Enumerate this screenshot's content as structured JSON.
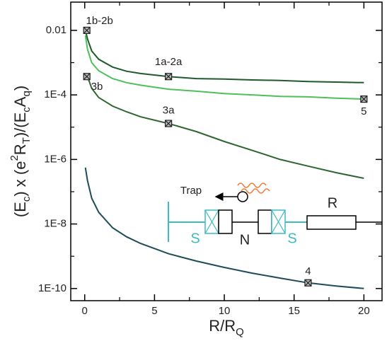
{
  "chart_data": {
    "type": "line",
    "log_y": true,
    "x": [
      0.05,
      0.2,
      0.5,
      1,
      2,
      3,
      4,
      6,
      8,
      10,
      12,
      14,
      16,
      18,
      20
    ],
    "series": [
      {
        "color": "#1f5a2a",
        "values": [
          0.01,
          0.0054,
          0.0023,
          0.00127,
          0.00073,
          0.00054,
          0.00046,
          0.00037,
          0.00032,
          0.00031,
          0.00029,
          0.00028,
          0.00026,
          0.00025,
          0.00024
        ]
      },
      {
        "color": "#4fbf5a",
        "values": [
          0.007,
          0.0026,
          0.001,
          0.00056,
          0.00032,
          0.00024,
          0.0002,
          0.00015,
          0.00013,
          0.00011,
          0.0001,
          9e-05,
          8.7e-05,
          7.9e-05,
          7.4e-05
        ]
      },
      {
        "color": "#2c6632",
        "values": [
          null,
          0.00037,
          0.00016,
          8.3e-05,
          4.5e-05,
          3e-05,
          2.1e-05,
          1.3e-05,
          7.3e-06,
          3.6e-06,
          1.9e-06,
          1e-06,
          6.2e-07,
          3.9e-07,
          2.6e-07
        ]
      },
      {
        "color": "#1d4c58",
        "values": [
          5.6e-07,
          2.2e-07,
          6.3e-08,
          2.3e-08,
          7.6e-09,
          4e-09,
          2.5e-09,
          1.2e-09,
          7.1e-10,
          4.5e-10,
          3e-10,
          2.1e-10,
          1.5e-10,
          1.2e-10,
          1e-10
        ]
      }
    ],
    "annotations": [
      {
        "text": "1b-2b",
        "x": 0.15,
        "y": 0.01
      },
      {
        "text": "1a-2a",
        "x": 6,
        "y": 0.00037
      },
      {
        "text": "3b",
        "x": 0.15,
        "y": 0.00037
      },
      {
        "text": "3a",
        "x": 6,
        "y": 1.3e-05
      },
      {
        "text": "5",
        "x": 20,
        "y": 7.4e-05
      },
      {
        "text": "4",
        "x": 16,
        "y": 1.5e-10
      }
    ],
    "xlim": [
      -1,
      21.3
    ],
    "ylim": [
      4.2e-11,
      0.075
    ],
    "xticks": [
      0,
      5,
      10,
      15,
      20
    ],
    "xminor": [
      2.5,
      7.5,
      12.5,
      17.5
    ],
    "yticks": [
      0.01,
      {
        "value": 0.0001,
        "label": "1E-4"
      },
      {
        "value": 1e-06,
        "label": "1E-6"
      },
      {
        "value": 1e-08,
        "label": "1E-8"
      },
      {
        "value": 1e-10,
        "label": "1E-10"
      }
    ],
    "yminor": [
      0.001,
      1e-05,
      1e-07,
      1e-09
    ],
    "xlabel": [
      {
        "text": "R/R"
      },
      {
        "text": "Q",
        "sub": true
      }
    ],
    "ylabel": [
      {
        "text": "(E"
      },
      {
        "text": "c",
        "sub": true
      },
      {
        "text": ") x (e"
      },
      {
        "text": "2",
        "sup": true
      },
      {
        "text": "R"
      },
      {
        "text": "T",
        "sub": true
      },
      {
        "text": ")/(E"
      },
      {
        "text": "c",
        "sub": true
      },
      {
        "text": "A"
      },
      {
        "text": "q",
        "sub": true
      },
      {
        "text": ")"
      }
    ],
    "inset": {
      "trap": "Trap",
      "r": "R",
      "s1": "S",
      "n": "N",
      "s2": "S"
    }
  }
}
